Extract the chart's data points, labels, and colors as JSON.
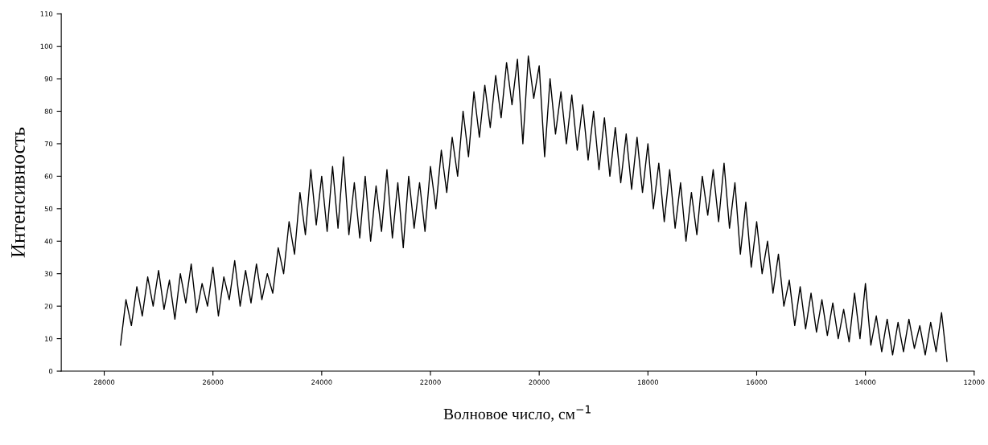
{
  "chart_data": {
    "type": "line",
    "xlabel": "Волновое число, см$^{−1}$",
    "ylabel": "Интенсивность",
    "x": [
      27700,
      27600,
      27500,
      27400,
      27300,
      27200,
      27100,
      27000,
      26900,
      26800,
      26700,
      26600,
      26500,
      26400,
      26300,
      26200,
      26100,
      26000,
      25900,
      25800,
      25700,
      25600,
      25500,
      25400,
      25300,
      25200,
      25100,
      25000,
      24900,
      24800,
      24700,
      24600,
      24500,
      24400,
      24300,
      24200,
      24100,
      24000,
      23900,
      23800,
      23700,
      23600,
      23500,
      23400,
      23300,
      23200,
      23100,
      23000,
      22900,
      22800,
      22700,
      22600,
      22500,
      22400,
      22300,
      22200,
      22100,
      22000,
      21900,
      21800,
      21700,
      21600,
      21500,
      21400,
      21300,
      21200,
      21100,
      21000,
      20900,
      20800,
      20700,
      20600,
      20500,
      20400,
      20300,
      20200,
      20100,
      20000,
      19900,
      19800,
      19700,
      19600,
      19500,
      19400,
      19300,
      19200,
      19100,
      19000,
      18900,
      18800,
      18700,
      18600,
      18500,
      18400,
      18300,
      18200,
      18100,
      18000,
      17900,
      17800,
      17700,
      17600,
      17500,
      17400,
      17300,
      17200,
      17100,
      17000,
      16900,
      16800,
      16700,
      16600,
      16500,
      16400,
      16300,
      16200,
      16100,
      16000,
      15900,
      15800,
      15700,
      15600,
      15500,
      15400,
      15300,
      15200,
      15100,
      15000,
      14900,
      14800,
      14700,
      14600,
      14500,
      14400,
      14300,
      14200,
      14100,
      14000,
      13900,
      13800,
      13700,
      13600,
      13500,
      13400,
      13300,
      13200,
      13100,
      13000,
      12900,
      12800,
      12700,
      12600,
      12500
    ],
    "series": [
      {
        "color": "#000000",
        "values": [
          8,
          22,
          14,
          26,
          17,
          29,
          20,
          31,
          19,
          28,
          16,
          30,
          21,
          33,
          18,
          27,
          20,
          32,
          17,
          29,
          22,
          34,
          20,
          31,
          21,
          33,
          22,
          30,
          24,
          38,
          30,
          46,
          36,
          55,
          42,
          62,
          45,
          60,
          43,
          63,
          44,
          66,
          42,
          58,
          41,
          60,
          40,
          57,
          43,
          62,
          41,
          58,
          38,
          60,
          44,
          58,
          43,
          63,
          50,
          68,
          55,
          72,
          60,
          80,
          66,
          86,
          72,
          88,
          75,
          91,
          78,
          95,
          82,
          96,
          70,
          97,
          84,
          94,
          66,
          90,
          73,
          86,
          70,
          85,
          68,
          82,
          65,
          80,
          62,
          78,
          60,
          75,
          58,
          73,
          56,
          72,
          55,
          70,
          50,
          64,
          46,
          62,
          44,
          58,
          40,
          55,
          42,
          60,
          48,
          62,
          46,
          64,
          44,
          58,
          36,
          52,
          32,
          46,
          30,
          40,
          24,
          36,
          20,
          28,
          14,
          26,
          13,
          24,
          12,
          22,
          11,
          21,
          10,
          19,
          9,
          24,
          10,
          27,
          8,
          17,
          6,
          16,
          5,
          15,
          6,
          16,
          7,
          14,
          5,
          15,
          6,
          18,
          3
        ]
      }
    ],
    "xlim": [
      28790,
      12000
    ],
    "xticks": [
      28000,
      26000,
      24000,
      22000,
      20000,
      18000,
      16000,
      14000,
      12000
    ],
    "ylim": [
      0,
      110
    ],
    "yticks": [
      0,
      10,
      20,
      30,
      40,
      50,
      60,
      70,
      80,
      90,
      100,
      110
    ],
    "grid": false,
    "legend": false,
    "marker": "none",
    "line_style": "solid"
  }
}
